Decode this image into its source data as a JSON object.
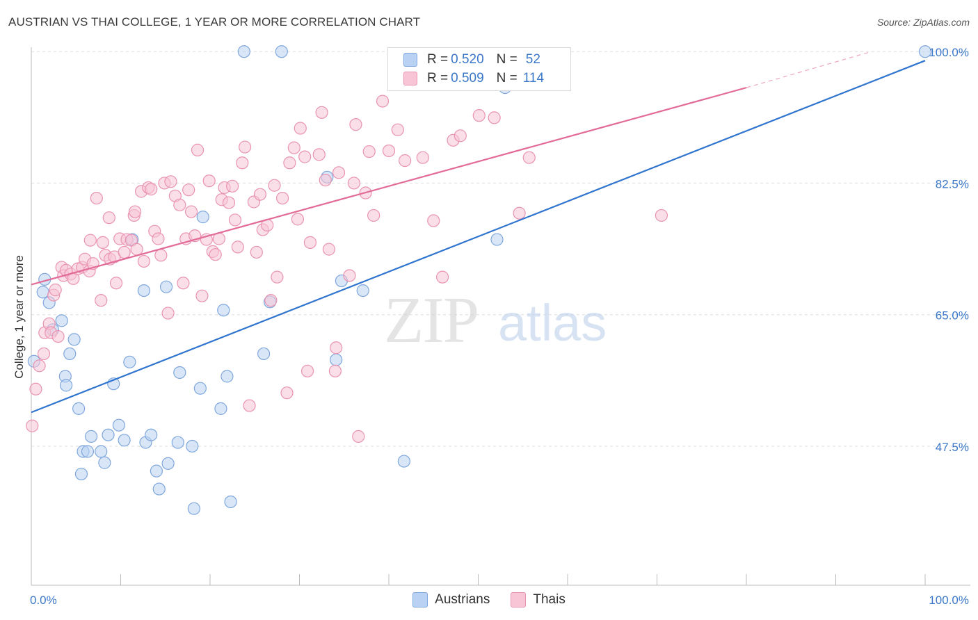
{
  "title": "AUSTRIAN VS THAI COLLEGE, 1 YEAR OR MORE CORRELATION CHART",
  "source": "Source: ZipAtlas.com",
  "watermark": {
    "zip": "ZIP",
    "atlas": "atlas"
  },
  "colors": {
    "austrians_fill": "#b9d1f3",
    "austrians_stroke": "#7fa7dc",
    "austrians_line": "#2f74cf",
    "thais_fill": "#f8c5d6",
    "thais_stroke": "#e993b1",
    "thais_line": "#e36b97",
    "tick_label": "#3b78c9",
    "grid": "#dedede",
    "axis": "#bbbbbb"
  },
  "legend_top": {
    "rows": [
      {
        "r_label": "R =",
        "r_value": "0.520",
        "n_label": "N =",
        "n_value": "52"
      },
      {
        "r_label": "R =",
        "r_value": "0.509",
        "n_label": "N =",
        "n_value": "114"
      }
    ]
  },
  "legend_bottom": [
    "Austrians",
    "Thais"
  ],
  "chart_data": {
    "type": "scatter",
    "title": "AUSTRIAN VS THAI COLLEGE, 1 YEAR OR MORE CORRELATION CHART",
    "xlabel": "",
    "ylabel": "College, 1 year or more",
    "xlim": [
      0,
      100
    ],
    "ylim": [
      29,
      101.5
    ],
    "x_tick_labels": [
      "0.0%",
      "100.0%"
    ],
    "y_ticks": [
      47.5,
      65.0,
      82.5,
      100.0
    ],
    "y_tick_labels": [
      "47.5%",
      "65.0%",
      "82.5%",
      "100.0%"
    ],
    "grid": true,
    "series": [
      {
        "name": "Austrians",
        "R": 0.52,
        "N": 52,
        "trend": {
          "x": [
            0,
            100
          ],
          "y": [
            52.0,
            98.8
          ]
        },
        "points": [
          [
            0.3,
            58.8
          ],
          [
            1.3,
            68.0
          ],
          [
            1.5,
            69.7
          ],
          [
            2.0,
            66.6
          ],
          [
            2.4,
            63.0
          ],
          [
            3.4,
            64.2
          ],
          [
            3.8,
            56.8
          ],
          [
            3.9,
            55.6
          ],
          [
            4.3,
            59.8
          ],
          [
            4.8,
            61.7
          ],
          [
            5.3,
            52.5
          ],
          [
            5.6,
            43.8
          ],
          [
            5.8,
            46.8
          ],
          [
            6.3,
            46.8
          ],
          [
            6.7,
            48.8
          ],
          [
            7.8,
            46.8
          ],
          [
            8.2,
            45.3
          ],
          [
            8.6,
            49.0
          ],
          [
            9.2,
            55.8
          ],
          [
            9.8,
            50.3
          ],
          [
            10.4,
            48.3
          ],
          [
            11.0,
            58.7
          ],
          [
            11.3,
            75.0
          ],
          [
            12.6,
            68.2
          ],
          [
            12.8,
            48.0
          ],
          [
            13.4,
            49.0
          ],
          [
            14.0,
            44.2
          ],
          [
            14.3,
            41.8
          ],
          [
            15.1,
            68.7
          ],
          [
            15.3,
            45.2
          ],
          [
            16.4,
            48.0
          ],
          [
            16.6,
            57.3
          ],
          [
            18.0,
            47.5
          ],
          [
            18.2,
            39.2
          ],
          [
            18.9,
            55.2
          ],
          [
            19.2,
            78.0
          ],
          [
            21.2,
            52.5
          ],
          [
            21.5,
            65.6
          ],
          [
            21.9,
            56.8
          ],
          [
            22.3,
            40.1
          ],
          [
            23.8,
            100.0
          ],
          [
            26.0,
            59.8
          ],
          [
            26.7,
            66.7
          ],
          [
            28.0,
            100.0
          ],
          [
            33.1,
            83.3
          ],
          [
            34.1,
            59.0
          ],
          [
            34.7,
            69.5
          ],
          [
            37.1,
            68.2
          ],
          [
            41.7,
            45.5
          ],
          [
            52.1,
            75.0
          ],
          [
            53.0,
            95.2
          ],
          [
            100.0,
            100.0
          ]
        ]
      },
      {
        "name": "Thais",
        "R": 0.509,
        "N": 114,
        "trend": {
          "x": [
            0,
            80
          ],
          "y": [
            69.0,
            95.2
          ]
        },
        "trend_dashed": {
          "x": [
            80,
            94
          ],
          "y": [
            95.2,
            100.0
          ]
        },
        "points": [
          [
            0.1,
            50.2
          ],
          [
            0.5,
            55.1
          ],
          [
            0.9,
            58.2
          ],
          [
            1.4,
            59.8
          ],
          [
            1.5,
            62.6
          ],
          [
            2.0,
            63.8
          ],
          [
            2.2,
            62.6
          ],
          [
            2.5,
            67.6
          ],
          [
            2.7,
            68.3
          ],
          [
            3.0,
            62.1
          ],
          [
            3.4,
            71.3
          ],
          [
            3.6,
            70.2
          ],
          [
            3.9,
            70.9
          ],
          [
            4.4,
            70.4
          ],
          [
            4.7,
            69.8
          ],
          [
            5.2,
            71.1
          ],
          [
            5.7,
            71.3
          ],
          [
            6.0,
            72.4
          ],
          [
            6.5,
            70.8
          ],
          [
            6.6,
            74.9
          ],
          [
            6.9,
            71.8
          ],
          [
            7.3,
            80.5
          ],
          [
            7.8,
            66.9
          ],
          [
            8.0,
            74.6
          ],
          [
            8.3,
            72.9
          ],
          [
            8.7,
            77.9
          ],
          [
            8.8,
            72.4
          ],
          [
            9.3,
            72.7
          ],
          [
            9.5,
            69.2
          ],
          [
            9.9,
            75.1
          ],
          [
            10.4,
            73.3
          ],
          [
            10.7,
            75.0
          ],
          [
            11.2,
            74.9
          ],
          [
            11.5,
            78.2
          ],
          [
            11.6,
            78.7
          ],
          [
            11.8,
            73.7
          ],
          [
            12.3,
            81.4
          ],
          [
            12.6,
            72.1
          ],
          [
            13.1,
            81.9
          ],
          [
            13.4,
            81.7
          ],
          [
            13.8,
            76.1
          ],
          [
            14.2,
            75.1
          ],
          [
            14.5,
            72.9
          ],
          [
            14.9,
            82.5
          ],
          [
            15.3,
            65.2
          ],
          [
            15.6,
            82.7
          ],
          [
            16.1,
            80.8
          ],
          [
            16.6,
            79.6
          ],
          [
            17.0,
            69.2
          ],
          [
            17.3,
            75.1
          ],
          [
            17.6,
            81.6
          ],
          [
            17.9,
            78.7
          ],
          [
            18.3,
            75.5
          ],
          [
            18.6,
            86.9
          ],
          [
            19.1,
            67.5
          ],
          [
            19.6,
            75.0
          ],
          [
            19.9,
            82.8
          ],
          [
            20.3,
            73.4
          ],
          [
            20.6,
            73.0
          ],
          [
            21.0,
            75.1
          ],
          [
            21.3,
            80.3
          ],
          [
            21.6,
            81.9
          ],
          [
            22.1,
            79.9
          ],
          [
            22.5,
            82.1
          ],
          [
            22.8,
            77.6
          ],
          [
            23.1,
            74.0
          ],
          [
            23.6,
            85.2
          ],
          [
            23.9,
            87.3
          ],
          [
            24.4,
            52.9
          ],
          [
            24.9,
            80.0
          ],
          [
            25.2,
            73.3
          ],
          [
            25.6,
            81.0
          ],
          [
            25.9,
            76.3
          ],
          [
            26.4,
            76.9
          ],
          [
            26.8,
            66.9
          ],
          [
            27.2,
            82.2
          ],
          [
            27.5,
            70.0
          ],
          [
            28.1,
            80.5
          ],
          [
            28.6,
            54.6
          ],
          [
            28.9,
            85.2
          ],
          [
            29.4,
            87.2
          ],
          [
            29.8,
            77.7
          ],
          [
            30.1,
            89.8
          ],
          [
            30.6,
            86.0
          ],
          [
            31.2,
            74.6
          ],
          [
            32.2,
            86.3
          ],
          [
            32.5,
            91.9
          ],
          [
            32.9,
            82.9
          ],
          [
            33.3,
            73.7
          ],
          [
            34.1,
            60.6
          ],
          [
            34.4,
            83.9
          ],
          [
            35.6,
            70.2
          ],
          [
            36.1,
            82.5
          ],
          [
            36.3,
            90.3
          ],
          [
            36.6,
            48.8
          ],
          [
            37.8,
            86.7
          ],
          [
            38.3,
            78.2
          ],
          [
            39.3,
            93.4
          ],
          [
            40.0,
            86.8
          ],
          [
            41.0,
            89.6
          ],
          [
            43.8,
            85.9
          ],
          [
            46.0,
            70.0
          ],
          [
            47.2,
            88.2
          ],
          [
            48.0,
            88.8
          ],
          [
            50.1,
            91.5
          ],
          [
            51.8,
            91.2
          ],
          [
            54.6,
            78.5
          ],
          [
            55.7,
            85.9
          ],
          [
            70.5,
            78.2
          ],
          [
            30.9,
            57.5
          ],
          [
            37.4,
            81.2
          ],
          [
            34.0,
            57.5
          ],
          [
            41.8,
            85.5
          ],
          [
            45.0,
            77.5
          ]
        ]
      }
    ]
  }
}
